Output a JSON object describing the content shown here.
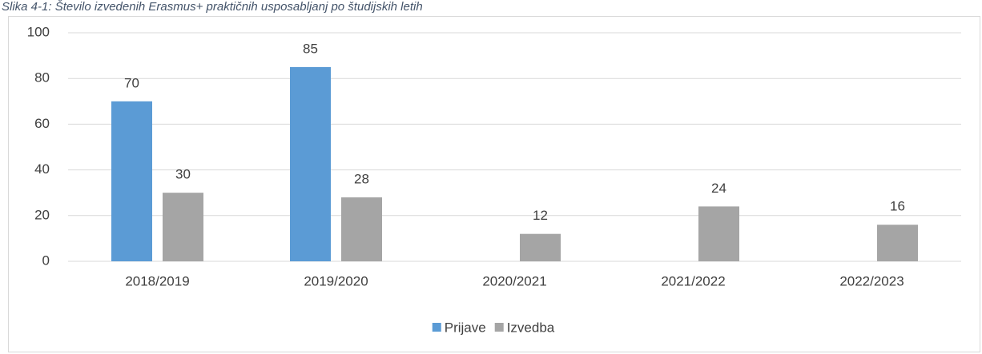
{
  "chart_data": {
    "type": "bar",
    "title": "Slika 4-1: Število izvedenih Erasmus+ praktičnih usposabljanj po študijskih letih",
    "categories": [
      "2018/2019",
      "2019/2020",
      "2020/2021",
      "2021/2022",
      "2022/2023"
    ],
    "series": [
      {
        "name": "Prijave",
        "color": "#5b9bd5",
        "values": [
          70,
          85,
          null,
          null,
          null
        ]
      },
      {
        "name": "Izvedba",
        "color": "#a5a5a5",
        "values": [
          30,
          28,
          12,
          24,
          16
        ]
      }
    ],
    "ylim": [
      0,
      100
    ],
    "yticks": [
      0,
      20,
      40,
      60,
      80,
      100
    ],
    "grid": true,
    "legend": "bottom"
  }
}
